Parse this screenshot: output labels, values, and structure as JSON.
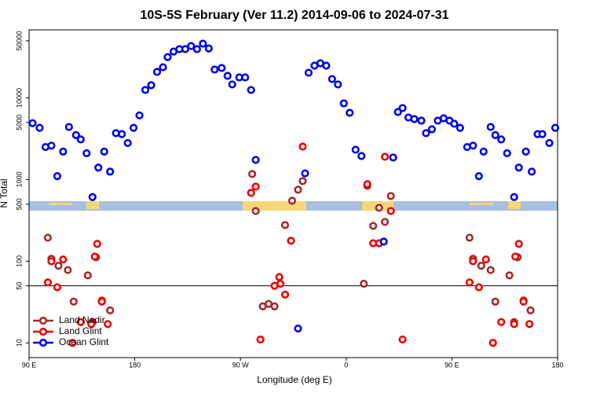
{
  "chart_data": {
    "type": "scatter",
    "title": "10S-5S February (Ver 11.2)   2014-09-06 to 2024-07-31",
    "xlabel": "Longitude (deg E)",
    "ylabel": "N Total",
    "xlim": [
      90,
      540
    ],
    "xticks": [
      {
        "value": 90,
        "label": "90 E"
      },
      180,
      {
        "value": 270,
        "label": "90 W"
      },
      {
        "value": 360,
        "label": "0"
      },
      {
        "value": 450,
        "label": "90 E"
      },
      {
        "value": 540,
        "label": "180"
      }
    ],
    "ylim": [
      6.6,
      68000
    ],
    "log_y": true,
    "yticks": [
      10,
      50,
      100,
      500,
      1000,
      5000,
      10000,
      50000
    ],
    "hline": 50,
    "legend": "bottom-left",
    "series": [
      {
        "name": "Land Nadir",
        "color": "#a52a2a",
        "x": [
          106,
          109,
          115,
          123,
          128,
          140,
          144,
          147,
          159,
          280,
          283,
          289,
          294,
          299,
          308,
          314,
          319,
          323,
          375,
          378,
          383,
          388,
          393,
          398,
          465,
          468,
          475,
          483,
          487,
          499,
          503,
          506,
          517
        ],
        "y": [
          194,
          107,
          88,
          78,
          32,
          67,
          18,
          112,
          25,
          1170,
          412,
          28,
          30,
          28,
          277,
          550,
          750,
          957,
          53,
          838,
          271,
          451,
          303,
          628,
          194,
          107,
          88,
          78,
          32,
          67,
          18,
          112,
          25
        ]
      },
      {
        "name": "Land Glint",
        "color": "#ee0000",
        "x": [
          106,
          114,
          109,
          119,
          127,
          134,
          143,
          146,
          148,
          152,
          152,
          157,
          279,
          283,
          287,
          299,
          303,
          304,
          308,
          313,
          323,
          378,
          383,
          388,
          393,
          398,
          408,
          465,
          473,
          468,
          479,
          485,
          492,
          503,
          504,
          507,
          511,
          511,
          516
        ],
        "y": [
          55,
          48,
          100,
          105,
          10,
          18,
          17,
          114,
          163,
          33,
          32,
          17,
          687,
          819,
          11,
          50,
          64,
          53,
          39,
          178,
          2530,
          876,
          166,
          166,
          1900,
          412,
          11,
          55,
          48,
          100,
          105,
          10,
          18,
          17,
          114,
          163,
          33,
          32,
          17
        ]
      },
      {
        "name": "Ocean Glint",
        "color": "#0000ee",
        "x": [
          93,
          99,
          104,
          109,
          114,
          119,
          124,
          130,
          134,
          139,
          144,
          149,
          154,
          159,
          164,
          169,
          174,
          179,
          184,
          189,
          194,
          199,
          204,
          208,
          213,
          218,
          223,
          228,
          233,
          238,
          243,
          248,
          254,
          259,
          263,
          269,
          274,
          279,
          283,
          325,
          328,
          333,
          338,
          343,
          348,
          353,
          358,
          363,
          368,
          373,
          392,
          400,
          404,
          408,
          413,
          418,
          424,
          428,
          433,
          438,
          443,
          448,
          452,
          457,
          463,
          468,
          473,
          477,
          483,
          487,
          492,
          497,
          503,
          507,
          513,
          518,
          523,
          527,
          533,
          538,
          319
        ],
        "y": [
          4900,
          4300,
          2500,
          2600,
          1100,
          2200,
          4400,
          3500,
          3100,
          2100,
          610,
          1400,
          2200,
          1250,
          3700,
          3600,
          2800,
          4300,
          6100,
          12500,
          14300,
          20800,
          23700,
          31600,
          36900,
          39500,
          39500,
          43100,
          39500,
          46100,
          40300,
          22200,
          23200,
          18600,
          14600,
          17800,
          17800,
          12500,
          1740,
          1190,
          20300,
          24800,
          26500,
          24800,
          17000,
          14600,
          8570,
          6570,
          2320,
          1940,
          174,
          1860,
          6710,
          7500,
          5750,
          5500,
          5260,
          3700,
          4120,
          5260,
          5620,
          5260,
          4820,
          4300,
          2500,
          2600,
          1100,
          2200,
          4400,
          3500,
          3100,
          2100,
          610,
          1400,
          2200,
          1250,
          3600,
          3600,
          2800,
          4300,
          15
        ]
      }
    ]
  }
}
